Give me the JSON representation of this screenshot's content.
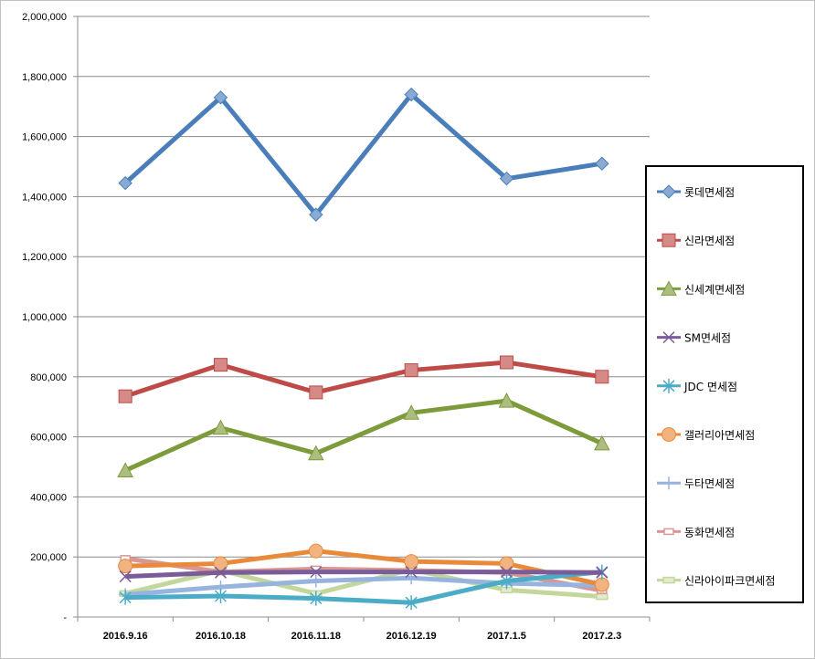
{
  "chart_data": {
    "type": "line",
    "title": "",
    "xlabel": "",
    "ylabel": "",
    "categories": [
      "2016.9.16",
      "2016.10.18",
      "2016.11.18",
      "2016.12.19",
      "2017.1.5",
      "2017.2.3"
    ],
    "ylim": [
      0,
      2000000
    ],
    "yticks": [
      "-",
      "200,000",
      "400,000",
      "600,000",
      "800,000",
      "1,000,000",
      "1,200,000",
      "1,400,000",
      "1,600,000",
      "1,800,000",
      "2,000,000"
    ],
    "grid": true,
    "legend_position": "right",
    "series": [
      {
        "name": "롯데면세점",
        "color": "#4a7ebb",
        "marker": "diamond",
        "values": [
          1445000,
          1730000,
          1340000,
          1740000,
          1460000,
          1510000
        ]
      },
      {
        "name": "신라면세점",
        "color": "#be4b48",
        "marker": "square",
        "values": [
          735000,
          840000,
          748000,
          822000,
          848000,
          800000
        ]
      },
      {
        "name": "신세계면세점",
        "color": "#7d9b3a",
        "marker": "triangle",
        "values": [
          488000,
          630000,
          545000,
          680000,
          720000,
          578000
        ]
      },
      {
        "name": "SM면세점",
        "color": "#7a5c99",
        "marker": "x",
        "values": [
          135000,
          148000,
          150000,
          150000,
          150000,
          148000
        ]
      },
      {
        "name": "JDC 면세점",
        "color": "#4aacc6",
        "marker": "star",
        "values": [
          65000,
          70000,
          62000,
          48000,
          120000,
          150000
        ]
      },
      {
        "name": "갤러리아면세점",
        "color": "#e98a3a",
        "marker": "circle",
        "values": [
          170000,
          178000,
          220000,
          185000,
          178000,
          108000
        ]
      },
      {
        "name": "두타면세점",
        "color": "#97b4de",
        "marker": "plus",
        "values": [
          75000,
          100000,
          120000,
          130000,
          112000,
          105000
        ]
      },
      {
        "name": "동화면세점",
        "color": "#d99694",
        "marker": "dash",
        "values": [
          195000,
          150000,
          160000,
          155000,
          148000,
          88000
        ]
      },
      {
        "name": "신라아이파크면세점",
        "color": "#c3d69b",
        "marker": "hline",
        "values": [
          78000,
          155000,
          78000,
          158000,
          90000,
          68000
        ]
      }
    ]
  }
}
